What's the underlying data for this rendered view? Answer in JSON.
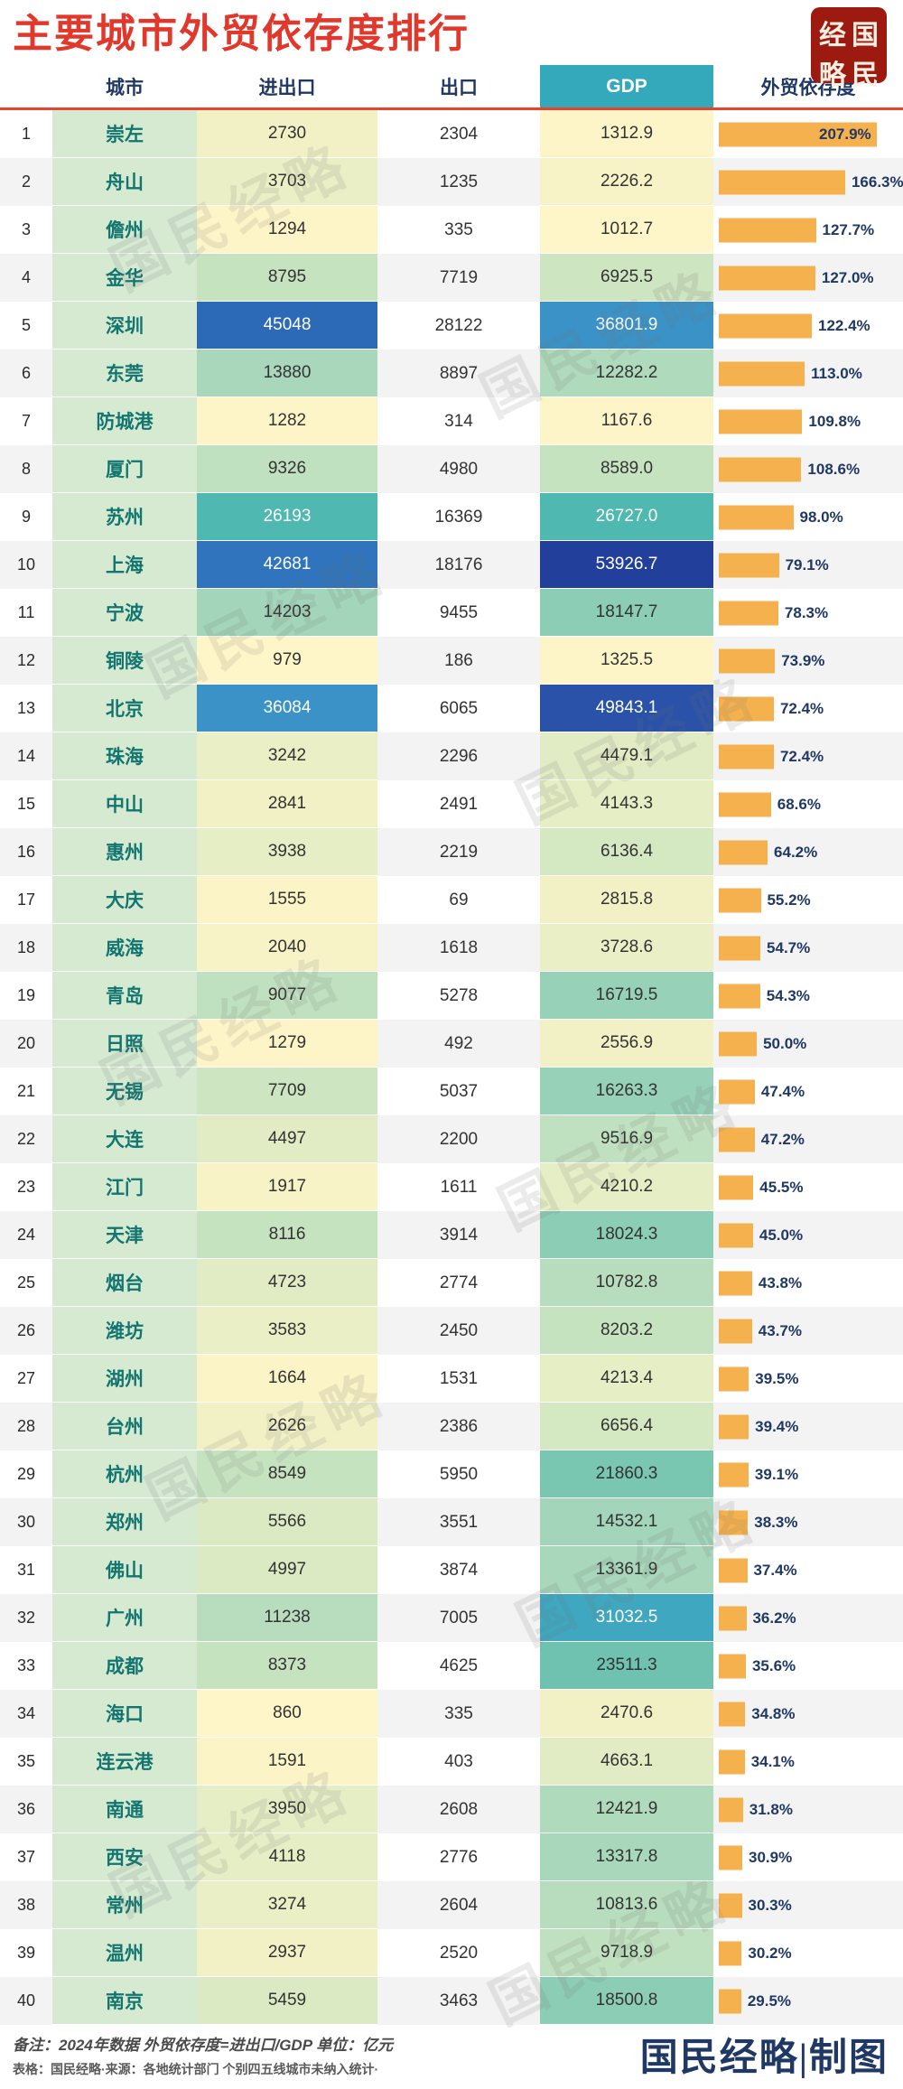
{
  "header": {
    "title": "主要城市外贸依存度排行",
    "seal_chars": [
      "经",
      "国",
      "略",
      "民"
    ]
  },
  "columns": {
    "rank": "",
    "city": "城市",
    "import_export": "进出口",
    "export": "出口",
    "gdp": "GDP",
    "dependence": "外贸依存度"
  },
  "colors": {
    "title": "#E2372B",
    "header_text": "#1F3864",
    "header_rule": "#E8432C",
    "gdp_header_bg": "#35A9BC",
    "city_cell_bg": "#D6EAD2",
    "city_text": "#12756F",
    "bar": "#F5B14D",
    "pct_text": "#1F3864",
    "seal_bg": "#9C1A0F",
    "credit_text": "#1F3864"
  },
  "chart_data": {
    "type": "table",
    "title": "主要城市外贸依存度排行",
    "unit": "亿元",
    "columns": [
      "城市",
      "进出口",
      "出口",
      "GDP",
      "外贸依存度"
    ],
    "max_dependence_pct": 207.9,
    "rows": [
      {
        "rank": 1,
        "city": "崇左",
        "import_export": 2730,
        "export": 2304,
        "gdp": 1312.9,
        "dependence_pct": 207.9,
        "ie_bg": "#F2F1C6",
        "ie_fg": "#333333",
        "gdp_bg": "#FDF5C8",
        "gdp_fg": "#333333"
      },
      {
        "rank": 2,
        "city": "舟山",
        "import_export": 3703,
        "export": 1235,
        "gdp": 2226.2,
        "dependence_pct": 166.3,
        "ie_bg": "#EBEFC5",
        "ie_fg": "#333333",
        "gdp_bg": "#F7F3C7",
        "gdp_fg": "#333333"
      },
      {
        "rank": 3,
        "city": "儋州",
        "import_export": 1294,
        "export": 335,
        "gdp": 1012.7,
        "dependence_pct": 127.7,
        "ie_bg": "#FDF5C8",
        "ie_fg": "#333333",
        "gdp_bg": "#FEF6C9",
        "gdp_fg": "#333333"
      },
      {
        "rank": 4,
        "city": "金华",
        "import_export": 8795,
        "export": 7719,
        "gdp": 6925.5,
        "dependence_pct": 127.0,
        "ie_bg": "#C6E3C0",
        "ie_fg": "#333333",
        "gdp_bg": "#CDE5C1",
        "gdp_fg": "#333333"
      },
      {
        "rank": 5,
        "city": "深圳",
        "import_export": 45048,
        "export": 28122,
        "gdp": 36801.9,
        "dependence_pct": 122.4,
        "ie_bg": "#2C69B6",
        "ie_fg": "#FFFFFF",
        "gdp_bg": "#3B92C6",
        "gdp_fg": "#FFFFFF"
      },
      {
        "rank": 6,
        "city": "东莞",
        "import_export": 13880,
        "export": 8897,
        "gdp": 12282.2,
        "dependence_pct": 113.0,
        "ie_bg": "#A8D7BB",
        "ie_fg": "#333333",
        "gdp_bg": "#B0DABC",
        "gdp_fg": "#333333"
      },
      {
        "rank": 7,
        "city": "防城港",
        "import_export": 1282,
        "export": 314,
        "gdp": 1167.6,
        "dependence_pct": 109.8,
        "ie_bg": "#FDF5C8",
        "ie_fg": "#333333",
        "gdp_bg": "#FDF5C8",
        "gdp_fg": "#333333"
      },
      {
        "rank": 8,
        "city": "厦门",
        "import_export": 9326,
        "export": 4980,
        "gdp": 8589.0,
        "dependence_pct": 108.6,
        "ie_bg": "#C0E1BF",
        "ie_fg": "#333333",
        "gdp_bg": "#C6E3C0",
        "gdp_fg": "#333333"
      },
      {
        "rank": 9,
        "city": "苏州",
        "import_export": 26193,
        "export": 16369,
        "gdp": 26727.0,
        "dependence_pct": 98.0,
        "ie_bg": "#4FB8B0",
        "ie_fg": "#FFFFFF",
        "gdp_bg": "#4FB8B0",
        "gdp_fg": "#FFFFFF"
      },
      {
        "rank": 10,
        "city": "上海",
        "import_export": 42681,
        "export": 18176,
        "gdp": 53926.7,
        "dependence_pct": 79.1,
        "ie_bg": "#2F74BC",
        "ie_fg": "#FFFFFF",
        "gdp_bg": "#22409B",
        "gdp_fg": "#FFFFFF"
      },
      {
        "rank": 11,
        "city": "宁波",
        "import_export": 14203,
        "export": 9455,
        "gdp": 18147.7,
        "dependence_pct": 78.3,
        "ie_bg": "#A3D5BA",
        "ie_fg": "#333333",
        "gdp_bg": "#8CCDB5",
        "gdp_fg": "#333333"
      },
      {
        "rank": 12,
        "city": "铜陵",
        "import_export": 979,
        "export": 186,
        "gdp": 1325.5,
        "dependence_pct": 73.9,
        "ie_bg": "#FEF6C9",
        "ie_fg": "#333333",
        "gdp_bg": "#FDF5C8",
        "gdp_fg": "#333333"
      },
      {
        "rank": 13,
        "city": "北京",
        "import_export": 36084,
        "export": 6065,
        "gdp": 49843.1,
        "dependence_pct": 72.4,
        "ie_bg": "#3B92C6",
        "ie_fg": "#FFFFFF",
        "gdp_bg": "#2A52A8",
        "gdp_fg": "#FFFFFF"
      },
      {
        "rank": 14,
        "city": "珠海",
        "import_export": 3242,
        "export": 2296,
        "gdp": 4479.1,
        "dependence_pct": 72.4,
        "ie_bg": "#EBEFC5",
        "ie_fg": "#333333",
        "gdp_bg": "#E1ECC4",
        "gdp_fg": "#333333"
      },
      {
        "rank": 15,
        "city": "中山",
        "import_export": 2841,
        "export": 2491,
        "gdp": 4143.3,
        "dependence_pct": 68.6,
        "ie_bg": "#F2F1C6",
        "ie_fg": "#333333",
        "gdp_bg": "#E6EEC5",
        "gdp_fg": "#333333"
      },
      {
        "rank": 16,
        "city": "惠州",
        "import_export": 3938,
        "export": 2219,
        "gdp": 6136.4,
        "dependence_pct": 64.2,
        "ie_bg": "#E6EEC5",
        "ie_fg": "#333333",
        "gdp_bg": "#D4E8C2",
        "gdp_fg": "#333333"
      },
      {
        "rank": 17,
        "city": "大庆",
        "import_export": 1555,
        "export": 69,
        "gdp": 2815.8,
        "dependence_pct": 55.2,
        "ie_bg": "#FBF4C7",
        "ie_fg": "#333333",
        "gdp_bg": "#F2F1C6",
        "gdp_fg": "#333333"
      },
      {
        "rank": 18,
        "city": "威海",
        "import_export": 2040,
        "export": 1618,
        "gdp": 3728.6,
        "dependence_pct": 54.7,
        "ie_bg": "#F7F3C7",
        "ie_fg": "#333333",
        "gdp_bg": "#EBEFC5",
        "gdp_fg": "#333333"
      },
      {
        "rank": 19,
        "city": "青岛",
        "import_export": 9077,
        "export": 5278,
        "gdp": 16719.5,
        "dependence_pct": 54.3,
        "ie_bg": "#C0E1BF",
        "ie_fg": "#333333",
        "gdp_bg": "#97D1B8",
        "gdp_fg": "#333333"
      },
      {
        "rank": 20,
        "city": "日照",
        "import_export": 1279,
        "export": 492,
        "gdp": 2556.9,
        "dependence_pct": 50.0,
        "ie_bg": "#FDF5C8",
        "ie_fg": "#333333",
        "gdp_bg": "#F2F1C6",
        "gdp_fg": "#333333"
      },
      {
        "rank": 21,
        "city": "无锡",
        "import_export": 7709,
        "export": 5037,
        "gdp": 16263.3,
        "dependence_pct": 47.4,
        "ie_bg": "#CDE5C1",
        "ie_fg": "#333333",
        "gdp_bg": "#97D1B8",
        "gdp_fg": "#333333"
      },
      {
        "rank": 22,
        "city": "大连",
        "import_export": 4497,
        "export": 2200,
        "gdp": 9516.9,
        "dependence_pct": 47.2,
        "ie_bg": "#E1ECC4",
        "ie_fg": "#333333",
        "gdp_bg": "#C0E1BF",
        "gdp_fg": "#333333"
      },
      {
        "rank": 23,
        "city": "江门",
        "import_export": 1917,
        "export": 1611,
        "gdp": 4210.2,
        "dependence_pct": 45.5,
        "ie_bg": "#F7F3C7",
        "ie_fg": "#333333",
        "gdp_bg": "#E6EEC5",
        "gdp_fg": "#333333"
      },
      {
        "rank": 24,
        "city": "天津",
        "import_export": 8116,
        "export": 3914,
        "gdp": 18024.3,
        "dependence_pct": 45.0,
        "ie_bg": "#C6E3C0",
        "ie_fg": "#333333",
        "gdp_bg": "#8CCDB5",
        "gdp_fg": "#333333"
      },
      {
        "rank": 25,
        "city": "烟台",
        "import_export": 4723,
        "export": 2774,
        "gdp": 10782.8,
        "dependence_pct": 43.8,
        "ie_bg": "#E1ECC4",
        "ie_fg": "#333333",
        "gdp_bg": "#B7DDBE",
        "gdp_fg": "#333333"
      },
      {
        "rank": 26,
        "city": "潍坊",
        "import_export": 3583,
        "export": 2450,
        "gdp": 8203.2,
        "dependence_pct": 43.7,
        "ie_bg": "#EBEFC5",
        "ie_fg": "#333333",
        "gdp_bg": "#C6E3C0",
        "gdp_fg": "#333333"
      },
      {
        "rank": 27,
        "city": "湖州",
        "import_export": 1664,
        "export": 1531,
        "gdp": 4213.4,
        "dependence_pct": 39.5,
        "ie_bg": "#FBF4C7",
        "ie_fg": "#333333",
        "gdp_bg": "#E6EEC5",
        "gdp_fg": "#333333"
      },
      {
        "rank": 28,
        "city": "台州",
        "import_export": 2626,
        "export": 2386,
        "gdp": 6656.4,
        "dependence_pct": 39.4,
        "ie_bg": "#F2F1C6",
        "ie_fg": "#333333",
        "gdp_bg": "#D4E8C2",
        "gdp_fg": "#333333"
      },
      {
        "rank": 29,
        "city": "杭州",
        "import_export": 8549,
        "export": 5950,
        "gdp": 21860.3,
        "dependence_pct": 39.1,
        "ie_bg": "#C6E3C0",
        "ie_fg": "#333333",
        "gdp_bg": "#79C6B1",
        "gdp_fg": "#333333"
      },
      {
        "rank": 30,
        "city": "郑州",
        "import_export": 5566,
        "export": 3551,
        "gdp": 14532.1,
        "dependence_pct": 38.3,
        "ie_bg": "#DBEAC3",
        "ie_fg": "#333333",
        "gdp_bg": "#A3D5BA",
        "gdp_fg": "#333333"
      },
      {
        "rank": 31,
        "city": "佛山",
        "import_export": 4997,
        "export": 3874,
        "gdp": 13361.9,
        "dependence_pct": 37.4,
        "ie_bg": "#DBEAC3",
        "ie_fg": "#333333",
        "gdp_bg": "#A8D7BB",
        "gdp_fg": "#333333"
      },
      {
        "rank": 32,
        "city": "广州",
        "import_export": 11238,
        "export": 7005,
        "gdp": 31032.5,
        "dependence_pct": 36.2,
        "ie_bg": "#B7DDBE",
        "ie_fg": "#333333",
        "gdp_bg": "#3FA8C0",
        "gdp_fg": "#FFFFFF"
      },
      {
        "rank": 33,
        "city": "成都",
        "import_export": 8373,
        "export": 4625,
        "gdp": 23511.3,
        "dependence_pct": 35.6,
        "ie_bg": "#C6E3C0",
        "ie_fg": "#333333",
        "gdp_bg": "#6EC2AF",
        "gdp_fg": "#333333"
      },
      {
        "rank": 34,
        "city": "海口",
        "import_export": 860,
        "export": 335,
        "gdp": 2470.6,
        "dependence_pct": 34.8,
        "ie_bg": "#FEF6C9",
        "ie_fg": "#333333",
        "gdp_bg": "#F2F1C6",
        "gdp_fg": "#333333"
      },
      {
        "rank": 35,
        "city": "连云港",
        "import_export": 1591,
        "export": 403,
        "gdp": 4663.1,
        "dependence_pct": 34.1,
        "ie_bg": "#FBF4C7",
        "ie_fg": "#333333",
        "gdp_bg": "#E1ECC4",
        "gdp_fg": "#333333"
      },
      {
        "rank": 36,
        "city": "南通",
        "import_export": 3950,
        "export": 2608,
        "gdp": 12421.9,
        "dependence_pct": 31.8,
        "ie_bg": "#E6EEC5",
        "ie_fg": "#333333",
        "gdp_bg": "#B0DABC",
        "gdp_fg": "#333333"
      },
      {
        "rank": 37,
        "city": "西安",
        "import_export": 4118,
        "export": 2776,
        "gdp": 13317.8,
        "dependence_pct": 30.9,
        "ie_bg": "#E6EEC5",
        "ie_fg": "#333333",
        "gdp_bg": "#A8D7BB",
        "gdp_fg": "#333333"
      },
      {
        "rank": 38,
        "city": "常州",
        "import_export": 3274,
        "export": 2604,
        "gdp": 10813.6,
        "dependence_pct": 30.3,
        "ie_bg": "#EBEFC5",
        "ie_fg": "#333333",
        "gdp_bg": "#B7DDBE",
        "gdp_fg": "#333333"
      },
      {
        "rank": 39,
        "city": "温州",
        "import_export": 2937,
        "export": 2520,
        "gdp": 9718.9,
        "dependence_pct": 30.2,
        "ie_bg": "#F2F1C6",
        "ie_fg": "#333333",
        "gdp_bg": "#C0E1BF",
        "gdp_fg": "#333333"
      },
      {
        "rank": 40,
        "city": "南京",
        "import_export": 5459,
        "export": 3463,
        "gdp": 18500.8,
        "dependence_pct": 29.5,
        "ie_bg": "#DBEAC3",
        "ie_fg": "#333333",
        "gdp_bg": "#8CCDB5",
        "gdp_fg": "#333333"
      }
    ]
  },
  "footer": {
    "note1": "备注：2024年数据 外贸依存度=进出口/GDP 单位：亿元",
    "note2": "表格：国民经略·来源：各地统计部门 个别四五线城市未纳入统计·",
    "credit": "国民经略|制图"
  },
  "watermark": {
    "text": "国民经略"
  }
}
